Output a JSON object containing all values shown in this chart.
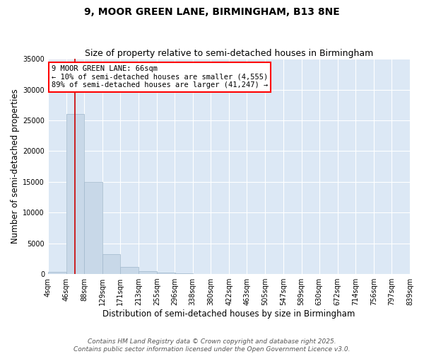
{
  "title": "9, MOOR GREEN LANE, BIRMINGHAM, B13 8NE",
  "subtitle": "Size of property relative to semi-detached houses in Birmingham",
  "xlabel": "Distribution of semi-detached houses by size in Birmingham",
  "ylabel": "Number of semi-detached properties",
  "footer_line1": "Contains HM Land Registry data © Crown copyright and database right 2025.",
  "footer_line2": "Contains public sector information licensed under the Open Government Licence v3.0.",
  "annotation_title": "9 MOOR GREEN LANE: 66sqm",
  "annotation_line2": "← 10% of semi-detached houses are smaller (4,555)",
  "annotation_line3": "89% of semi-detached houses are larger (41,247) →",
  "property_size": 66,
  "bar_color": "#c8d8e8",
  "bar_edge_color": "#a0b8cc",
  "vline_color": "#cc0000",
  "background_color": "#dce8f5",
  "bins": [
    4,
    46,
    88,
    129,
    171,
    213,
    255,
    296,
    338,
    380,
    422,
    463,
    505,
    547,
    589,
    630,
    672,
    714,
    756,
    797,
    839
  ],
  "bin_labels": [
    "4sqm",
    "46sqm",
    "88sqm",
    "129sqm",
    "171sqm",
    "213sqm",
    "255sqm",
    "296sqm",
    "338sqm",
    "380sqm",
    "422sqm",
    "463sqm",
    "505sqm",
    "547sqm",
    "589sqm",
    "630sqm",
    "672sqm",
    "714sqm",
    "756sqm",
    "797sqm",
    "839sqm"
  ],
  "values": [
    350,
    26000,
    15000,
    3200,
    1200,
    500,
    250,
    100,
    30,
    10,
    5,
    2,
    1,
    0,
    0,
    0,
    0,
    0,
    0,
    0
  ],
  "ylim": [
    0,
    35000
  ],
  "yticks": [
    0,
    5000,
    10000,
    15000,
    20000,
    25000,
    30000,
    35000
  ],
  "title_fontsize": 10,
  "subtitle_fontsize": 9,
  "axis_label_fontsize": 8.5,
  "tick_fontsize": 7,
  "annotation_fontsize": 7.5,
  "footer_fontsize": 6.5
}
